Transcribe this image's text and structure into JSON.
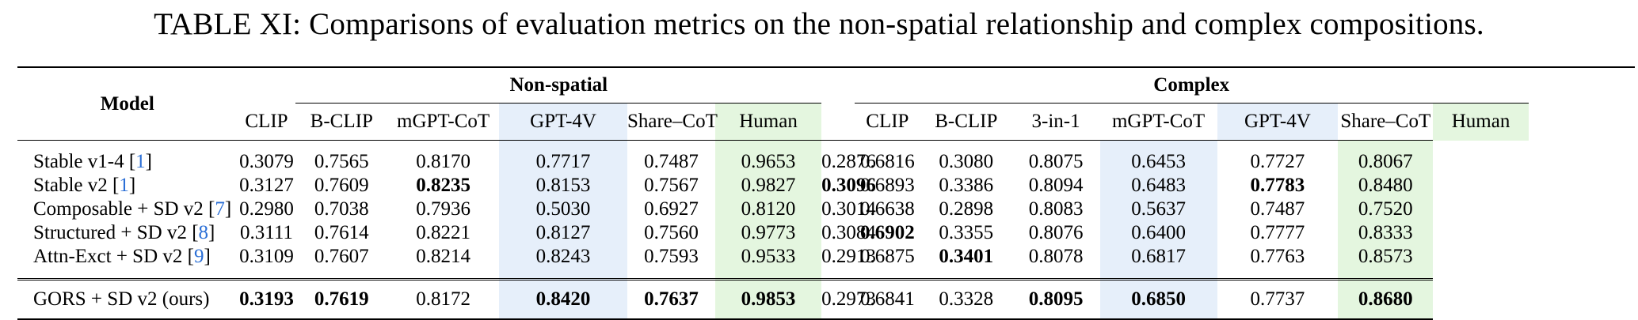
{
  "caption": "TABLE XI: Comparisons of evaluation metrics on the non-spatial relationship and complex compositions.",
  "header": {
    "model": "Model",
    "group_nonspatial": "Non-spatial",
    "group_complex": "Complex",
    "nonspatial_cols": [
      "CLIP",
      "B-CLIP",
      "mGPT-CoT",
      "GPT-4V",
      "Share–CoT",
      "Human"
    ],
    "complex_cols": [
      "CLIP",
      "B-CLIP",
      "3-in-1",
      "mGPT-CoT",
      "GPT-4V",
      "Share–CoT",
      "Human"
    ]
  },
  "rows": [
    {
      "name": "Stable v1-4 [",
      "ref": "1",
      "close": "]",
      "values": [
        "0.3079",
        "0.7565",
        "0.8170",
        "0.7717",
        "0.7487",
        "0.9653",
        "0.2876",
        "0.6816",
        "0.3080",
        "0.8075",
        "0.6453",
        "0.7727",
        "0.8067"
      ]
    },
    {
      "name": "Stable v2 [",
      "ref": "1",
      "close": "]",
      "values": [
        "0.3127",
        "0.7609",
        "0.8235",
        "0.8153",
        "0.7567",
        "0.9827",
        "0.3096",
        "0.6893",
        "0.3386",
        "0.8094",
        "0.6483",
        "0.7783",
        "0.8480"
      ]
    },
    {
      "name": "Composable + SD v2 [",
      "ref": "7",
      "close": "]",
      "values": [
        "0.2980",
        "0.7038",
        "0.7936",
        "0.5030",
        "0.6927",
        "0.8120",
        "0.3014",
        "0.6638",
        "0.2898",
        "0.8083",
        "0.5637",
        "0.7487",
        "0.7520"
      ]
    },
    {
      "name": "Structured + SD v2 [",
      "ref": "8",
      "close": "]",
      "values": [
        "0.3111",
        "0.7614",
        "0.8221",
        "0.8127",
        "0.7560",
        "0.9773",
        "0.3084",
        "0.6902",
        "0.3355",
        "0.8076",
        "0.6400",
        "0.7777",
        "0.8333"
      ]
    },
    {
      "name": "Attn-Exct + SD v2 [",
      "ref": "9",
      "close": "]",
      "values": [
        "0.3109",
        "0.7607",
        "0.8214",
        "0.8243",
        "0.7593",
        "0.9533",
        "0.2913",
        "0.6875",
        "0.3401",
        "0.8078",
        "0.6817",
        "0.7763",
        "0.8573"
      ]
    },
    {
      "name": "GORS  + SD v2 (ours)",
      "ref": "",
      "close": "",
      "values": [
        "0.3193",
        "0.7619",
        "0.8172",
        "0.8420",
        "0.7637",
        "0.9853",
        "0.2973",
        "0.6841",
        "0.3328",
        "0.8095",
        "0.6850",
        "0.7737",
        "0.8680"
      ]
    }
  ]
}
